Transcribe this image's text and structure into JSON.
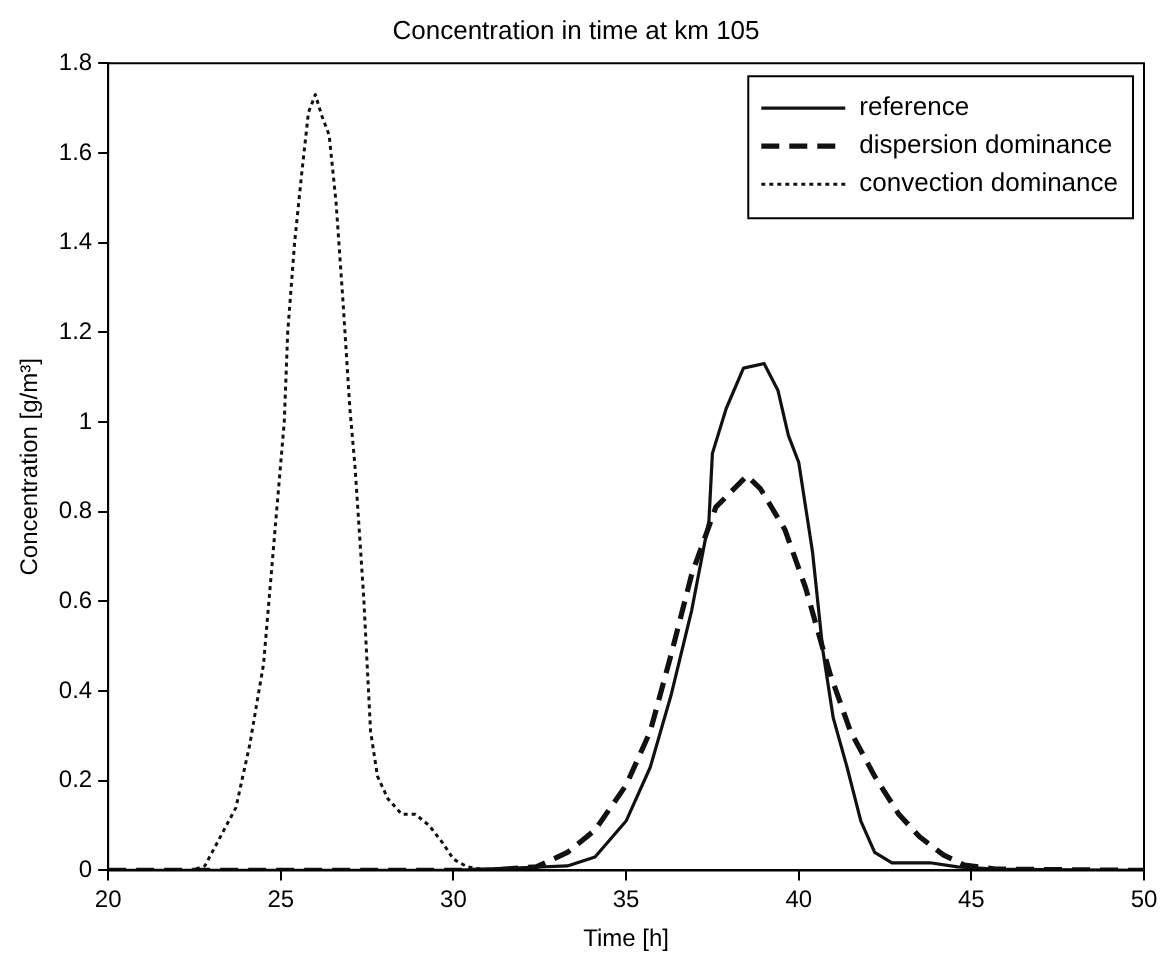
{
  "chart_data": {
    "type": "line",
    "title": "Concentration in time at km 105",
    "xlabel": "Time [h]",
    "ylabel": "Concentration [g/m³]",
    "xlim": [
      20,
      50
    ],
    "xticks": [
      20,
      25,
      30,
      35,
      40,
      45,
      50
    ],
    "ylim": [
      0,
      1.8
    ],
    "yticks": [
      0,
      0.2,
      0.4,
      0.6,
      0.8,
      1,
      1.2,
      1.4,
      1.6,
      1.8
    ],
    "grid": false,
    "legend": "top right",
    "marker": "none",
    "series": [
      {
        "name": "reference",
        "color": "#111111",
        "line_style": "solid",
        "x": [
          20,
          30,
          33.3,
          34.1,
          35,
          35.7,
          36.3,
          36.9,
          37.4,
          37.5,
          37.9,
          38.4,
          39,
          39.4,
          39.7,
          40,
          40.4,
          40.7,
          41,
          41.4,
          41.8,
          42.2,
          42.7,
          43.8,
          44.6,
          45.7,
          50
        ],
        "values": [
          0,
          0,
          0.01,
          0.03,
          0.11,
          0.23,
          0.39,
          0.58,
          0.78,
          0.93,
          1.03,
          1.12,
          1.13,
          1.07,
          0.97,
          0.91,
          0.71,
          0.49,
          0.34,
          0.23,
          0.11,
          0.04,
          0.017,
          0.017,
          0.008,
          0.003,
          0
        ]
      },
      {
        "name": "dispersion dominance",
        "color": "#111111",
        "line_style": "dashed",
        "x": [
          20,
          31,
          32.4,
          33.3,
          34.1,
          35,
          35.7,
          36.3,
          36.9,
          37.6,
          38.5,
          38.9,
          39.6,
          40.2,
          40.9,
          41.5,
          42.2,
          42.9,
          43.5,
          44.2,
          44.8,
          45.7,
          50
        ],
        "values": [
          0,
          0,
          0.008,
          0.04,
          0.09,
          0.19,
          0.31,
          0.48,
          0.66,
          0.81,
          0.88,
          0.85,
          0.76,
          0.63,
          0.44,
          0.31,
          0.21,
          0.125,
          0.075,
          0.034,
          0.012,
          0.003,
          0
        ]
      },
      {
        "name": "convection dominance",
        "color": "#111111",
        "line_style": "dotted",
        "x": [
          20,
          22.4,
          22.8,
          23.7,
          24.1,
          24.5,
          25.1,
          25.2,
          25.4,
          25.6,
          25.8,
          26,
          26.2,
          26.4,
          26.6,
          26.8,
          27,
          27.15,
          27.4,
          27.6,
          27.8,
          28.1,
          28.5,
          28.9,
          29.3,
          29.7,
          30,
          30.4,
          31,
          50
        ],
        "values": [
          0,
          0,
          0.01,
          0.14,
          0.28,
          0.46,
          1,
          1.2,
          1.4,
          1.55,
          1.69,
          1.73,
          1.68,
          1.64,
          1.49,
          1.27,
          1.03,
          0.9,
          0.61,
          0.31,
          0.21,
          0.16,
          0.125,
          0.125,
          0.1,
          0.06,
          0.025,
          0.008,
          0,
          0
        ]
      }
    ]
  }
}
